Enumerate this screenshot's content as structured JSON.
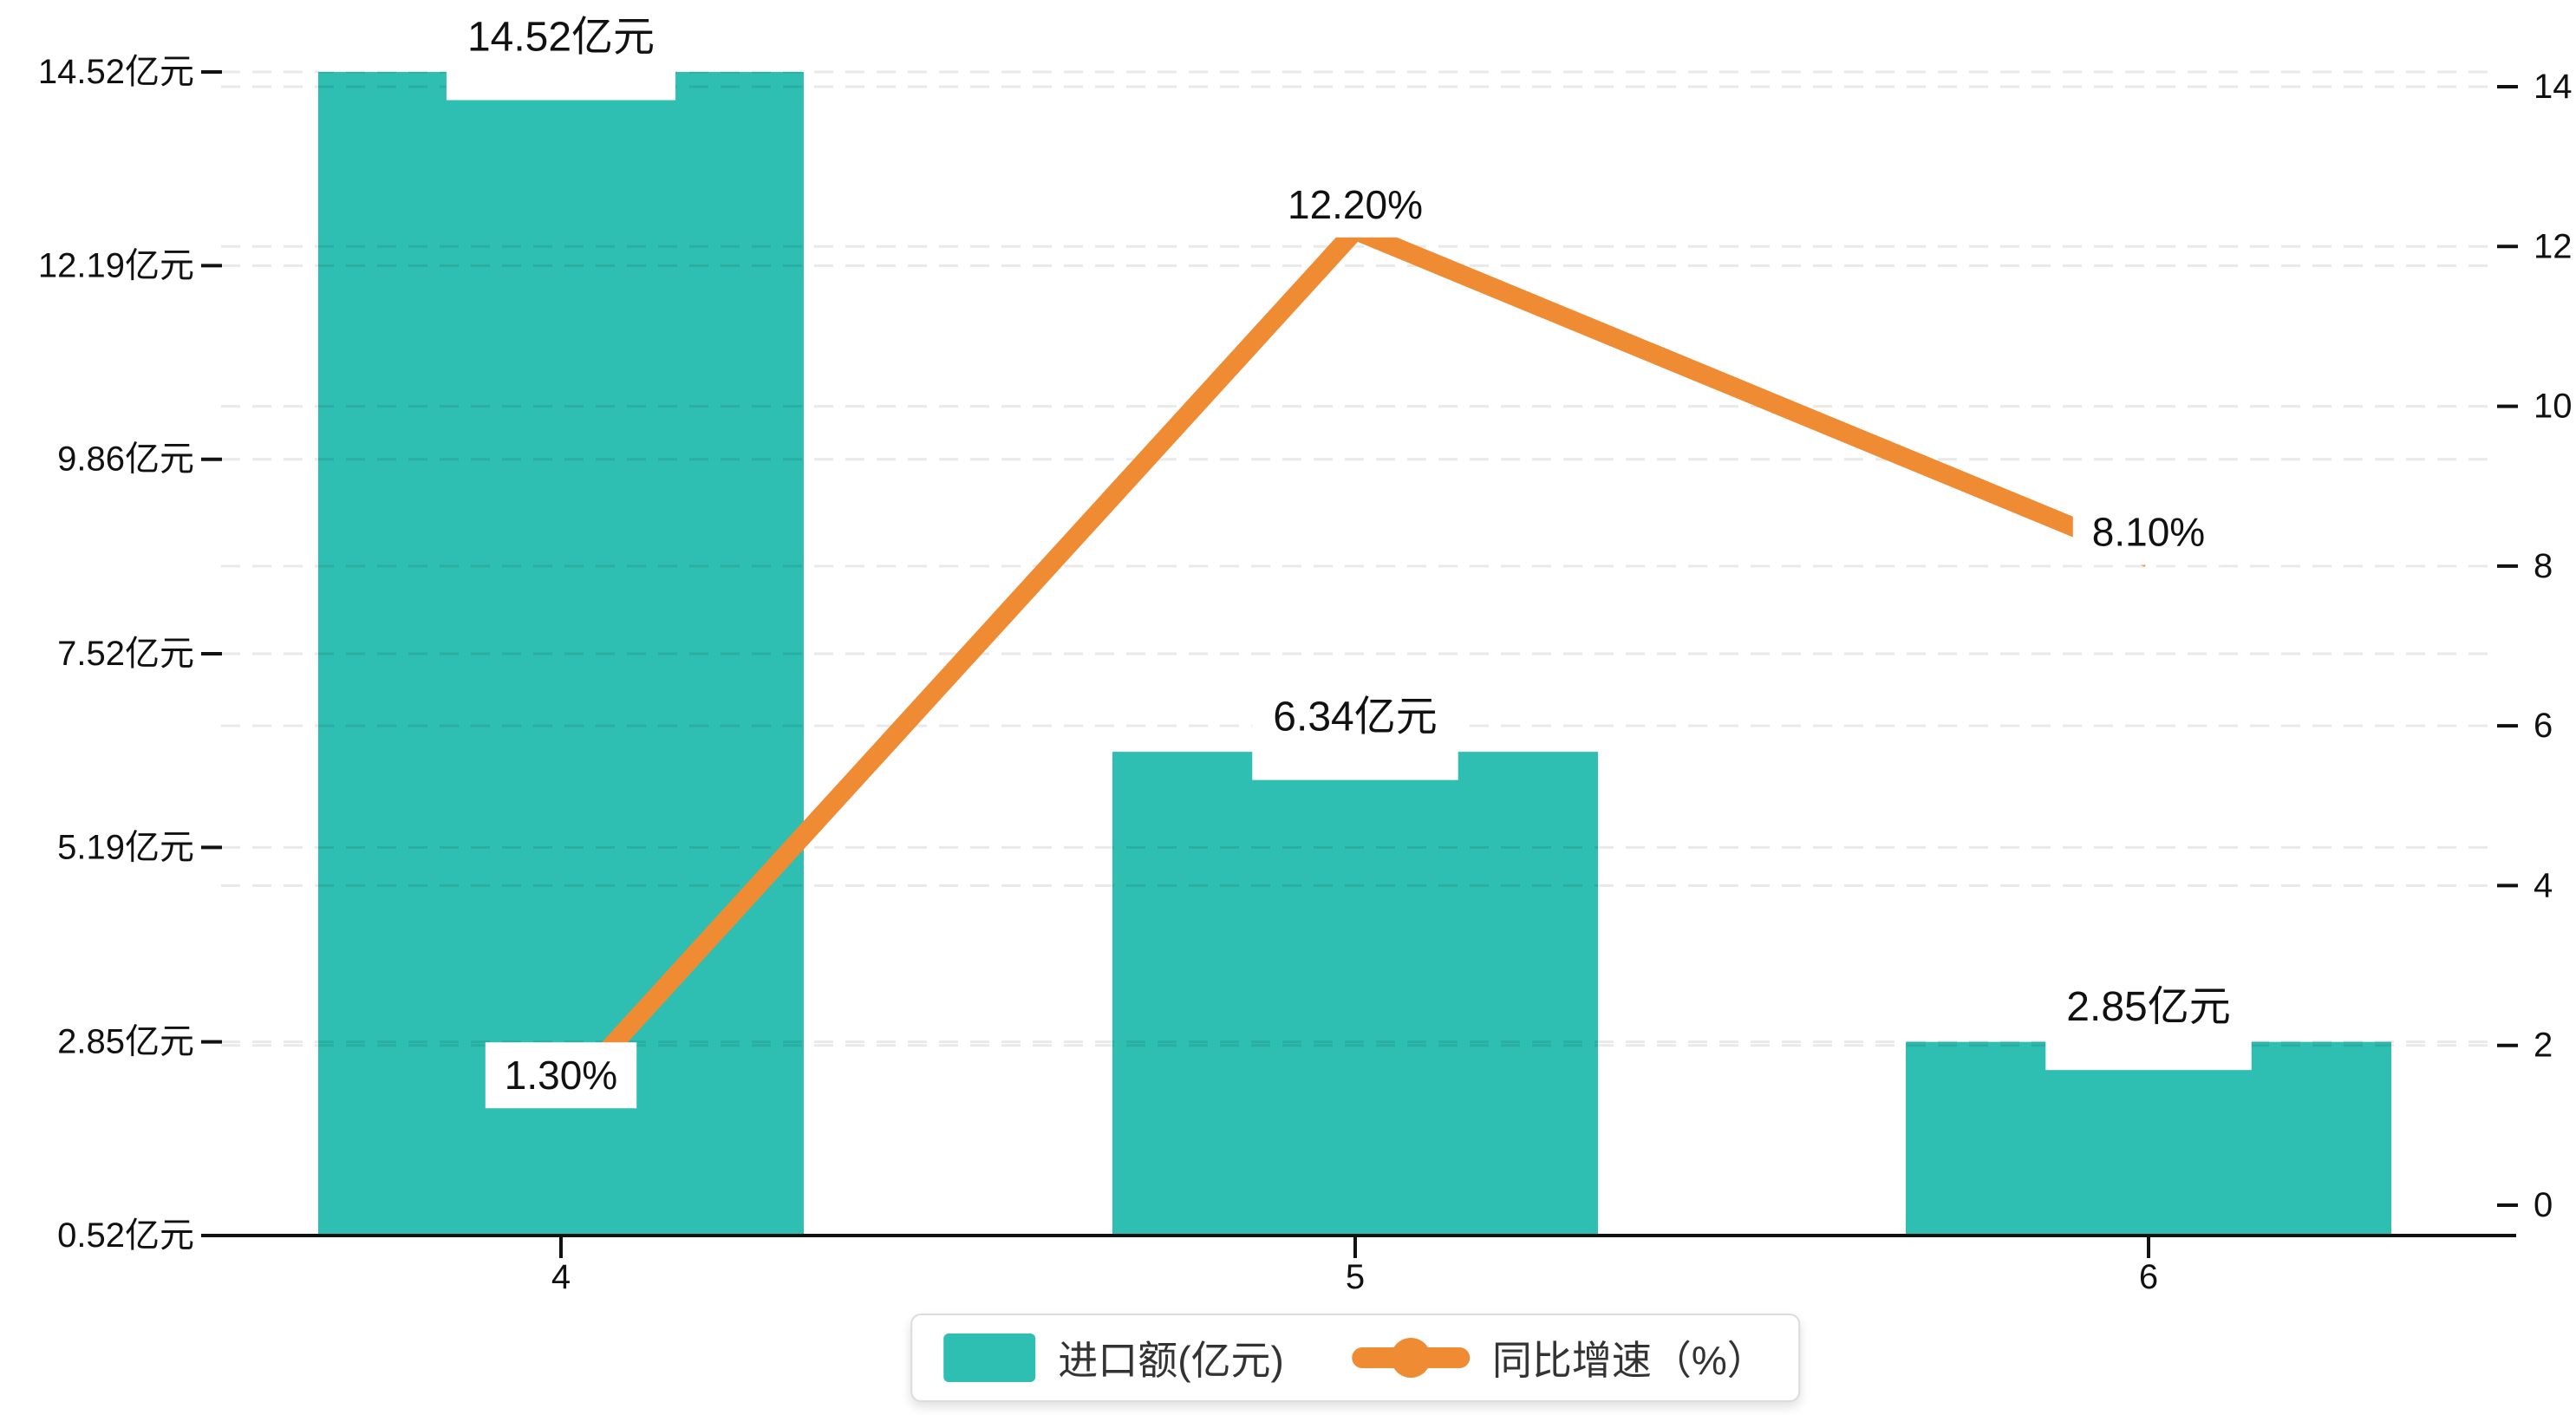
{
  "chart_data": {
    "type": "bar",
    "subtype": "bar-line-combo",
    "title": "",
    "categories": [
      "4",
      "5",
      "6"
    ],
    "series": [
      {
        "name": "进口额(亿元)",
        "type": "bar",
        "axis": "left",
        "values": [
          14.52,
          6.34,
          2.85
        ],
        "labels": [
          "14.52亿元",
          "6.34亿元",
          "2.85亿元"
        ],
        "color": "#2fbfb2"
      },
      {
        "name": "同比增速（%）",
        "type": "line",
        "axis": "right",
        "values": [
          1.3,
          12.2,
          8.1
        ],
        "labels": [
          "1.30%",
          "12.20%",
          "8.10%"
        ],
        "color": "#ee8b33"
      }
    ],
    "left_axis": {
      "ticks": [
        "14.52亿元",
        "12.19亿元",
        "9.86亿元",
        "7.52亿元",
        "5.19亿元",
        "2.85亿元",
        "0.52亿元"
      ],
      "tick_values": [
        14.52,
        12.19,
        9.86,
        7.52,
        5.19,
        2.85,
        0.52
      ],
      "min": 0.52,
      "max": 14.52
    },
    "right_axis": {
      "ticks": [
        "14",
        "12",
        "10",
        "8",
        "6",
        "4",
        "2",
        "0"
      ],
      "tick_values": [
        14,
        12,
        10,
        8,
        6,
        4,
        2,
        0
      ],
      "min": 0,
      "max": 14
    },
    "grid": true,
    "legend_position": "bottom",
    "colors": {
      "bar": "#2fbfb2",
      "line": "#ee8b33",
      "axis": "#111111",
      "tick_text": "#111111",
      "gridline": "rgba(0,0,0,0.085)",
      "label_text": "#000000",
      "label_box": "#ffffff",
      "legend_border": "#dcdcdc",
      "legend_text": "#333333"
    }
  },
  "legend": {
    "items": [
      {
        "label": "进口额(亿元)",
        "marker": "bar-swatch"
      },
      {
        "label": "同比增速（%）",
        "marker": "line-swatch"
      }
    ]
  }
}
